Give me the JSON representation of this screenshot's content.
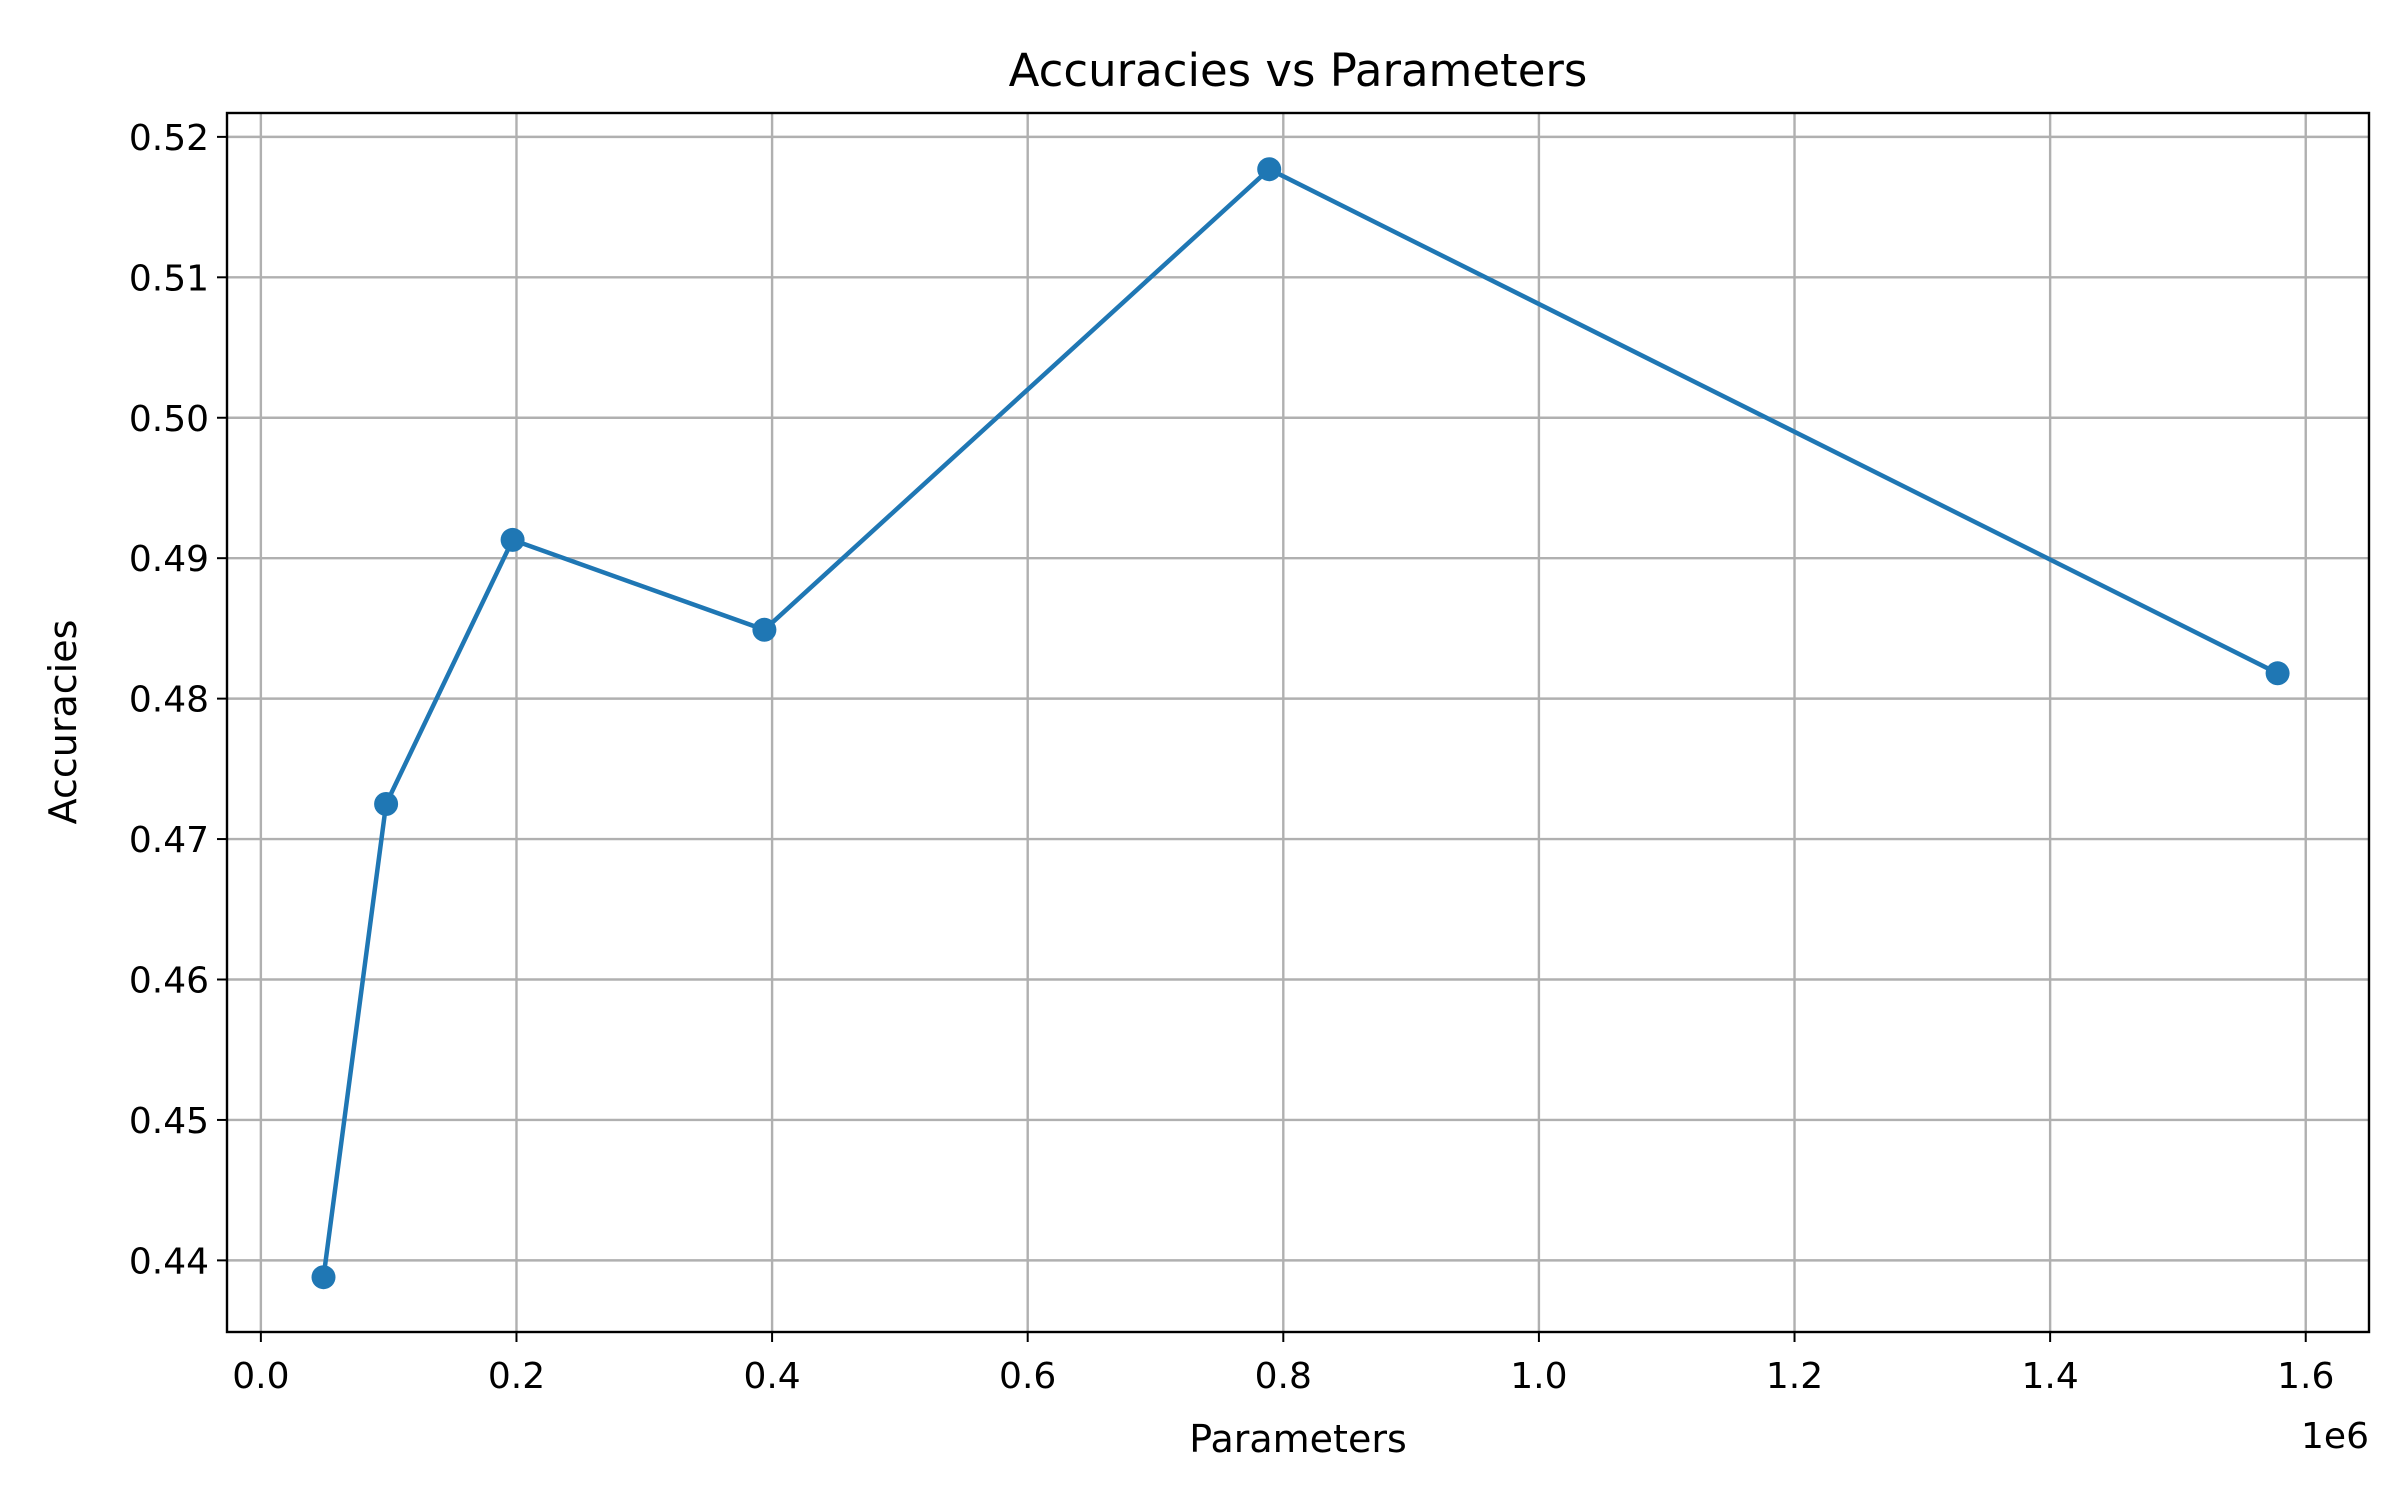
{
  "chart_data": {
    "type": "line",
    "title": "Accuracies vs Parameters",
    "xlabel": "Parameters",
    "ylabel": "Accuracies",
    "x_offset_label": "1e6",
    "x_scale": 1000000,
    "xlim": [
      -0.0265,
      1.6495
    ],
    "ylim": [
      0.4349,
      0.5217
    ],
    "x_ticks": [
      0.0,
      0.2,
      0.4,
      0.6,
      0.8,
      1.0,
      1.2,
      1.4,
      1.6
    ],
    "x_tick_labels": [
      "0.0",
      "0.2",
      "0.4",
      "0.6",
      "0.8",
      "1.0",
      "1.2",
      "1.4",
      "1.6"
    ],
    "y_ticks": [
      0.44,
      0.45,
      0.46,
      0.47,
      0.48,
      0.49,
      0.5,
      0.51,
      0.52
    ],
    "y_tick_labels": [
      "0.44",
      "0.45",
      "0.46",
      "0.47",
      "0.48",
      "0.49",
      "0.50",
      "0.51",
      "0.52"
    ],
    "grid": true,
    "series": [
      {
        "color": "#1f77b4",
        "marker": "circle",
        "x": [
          0.049,
          0.098,
          0.197,
          0.394,
          0.789,
          1.578
        ],
        "y": [
          0.4388,
          0.4725,
          0.4913,
          0.4849,
          0.5177,
          0.4818
        ]
      }
    ]
  }
}
